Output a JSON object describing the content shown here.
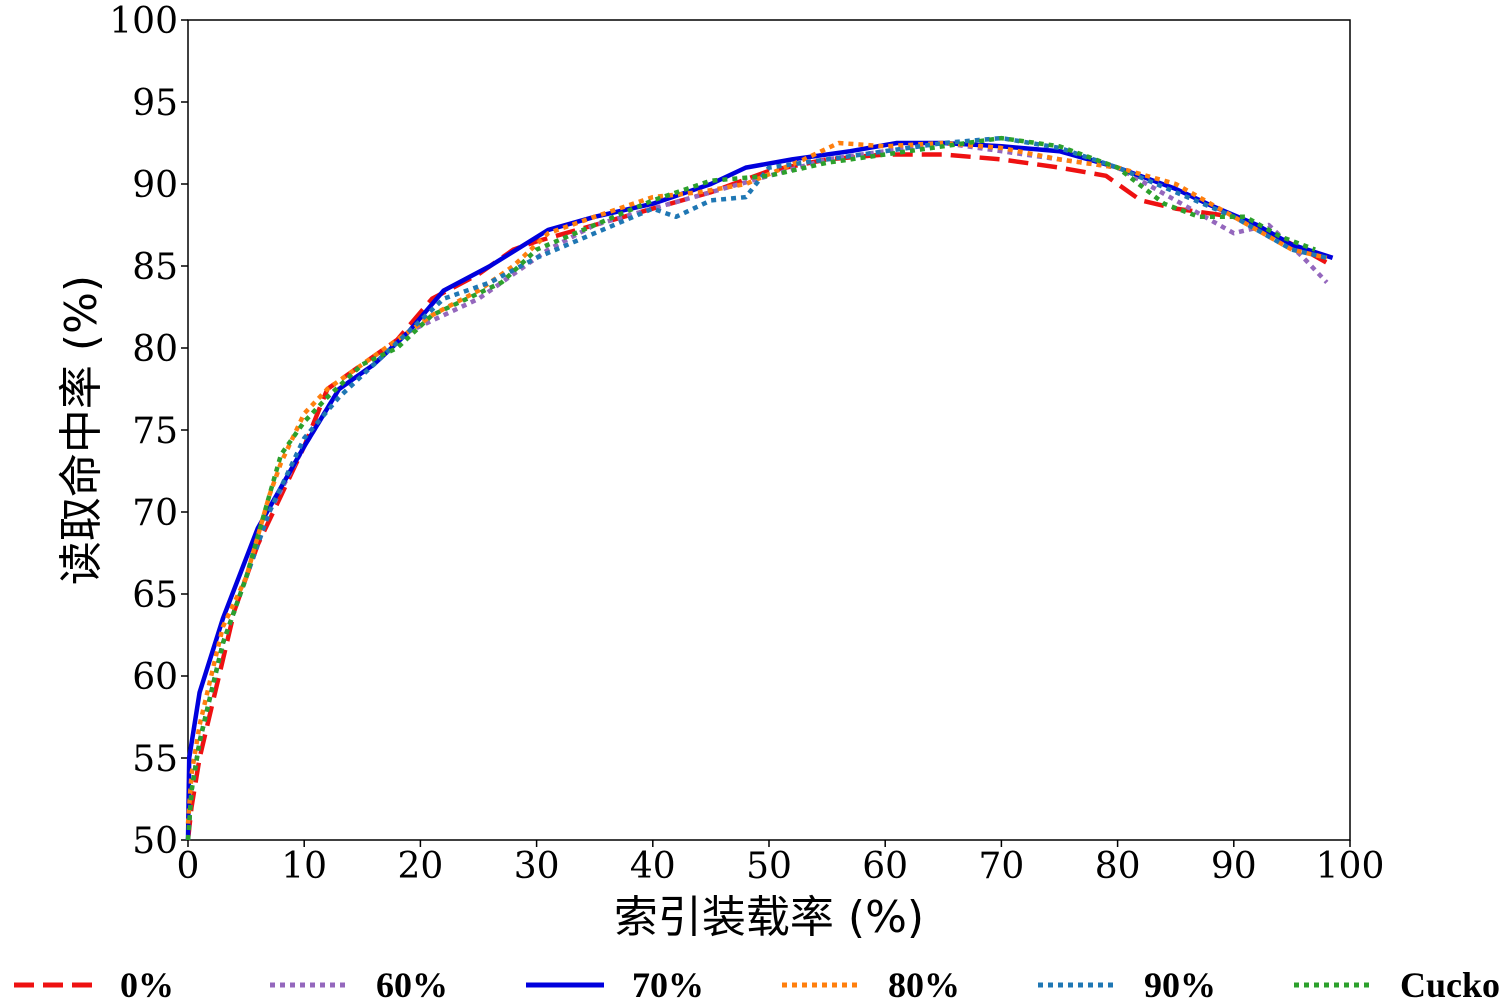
{
  "chart_data": {
    "type": "line",
    "title": "",
    "xlabel": "索引装载率 (%)",
    "ylabel": "读取命中率 (%)",
    "xlim": [
      0,
      100
    ],
    "ylim": [
      50,
      100
    ],
    "xticks": [
      0,
      10,
      20,
      30,
      40,
      50,
      60,
      70,
      80,
      90,
      100
    ],
    "yticks": [
      50,
      55,
      60,
      65,
      70,
      75,
      80,
      85,
      90,
      95,
      100
    ],
    "grid": false,
    "legend_position": "bottom",
    "series": [
      {
        "name": "0%",
        "color": "#ee1111",
        "dash": "dashed",
        "points": [
          [
            0,
            50
          ],
          [
            0.3,
            52
          ],
          [
            1,
            55
          ],
          [
            2,
            58
          ],
          [
            3,
            61
          ],
          [
            4,
            64
          ],
          [
            6,
            68
          ],
          [
            8,
            71
          ],
          [
            10,
            74
          ],
          [
            12,
            77.5
          ],
          [
            15,
            79
          ],
          [
            18,
            80.5
          ],
          [
            21,
            83
          ],
          [
            25,
            84.5
          ],
          [
            28,
            86
          ],
          [
            30,
            86.5
          ],
          [
            35,
            87.5
          ],
          [
            40,
            88.5
          ],
          [
            45,
            89.5
          ],
          [
            50,
            90.8
          ],
          [
            55,
            91.5
          ],
          [
            60,
            91.8
          ],
          [
            65,
            91.8
          ],
          [
            70,
            91.5
          ],
          [
            75,
            91
          ],
          [
            79,
            90.5
          ],
          [
            82,
            89
          ],
          [
            85,
            88.5
          ],
          [
            90,
            88
          ],
          [
            93,
            87
          ],
          [
            96,
            86
          ],
          [
            98.5,
            85
          ]
        ]
      },
      {
        "name": "60%",
        "color": "#9467bd",
        "dash": "dotted",
        "points": [
          [
            0,
            50
          ],
          [
            0.3,
            53
          ],
          [
            1,
            56
          ],
          [
            2,
            59
          ],
          [
            3,
            62
          ],
          [
            5,
            66
          ],
          [
            7,
            70
          ],
          [
            10,
            74
          ],
          [
            13,
            77.5
          ],
          [
            16,
            79
          ],
          [
            19,
            81
          ],
          [
            22,
            82
          ],
          [
            25,
            83
          ],
          [
            28,
            84.5
          ],
          [
            31,
            86
          ],
          [
            35,
            87.5
          ],
          [
            40,
            88.5
          ],
          [
            45,
            89.5
          ],
          [
            50,
            90.5
          ],
          [
            55,
            91.5
          ],
          [
            60,
            92
          ],
          [
            65,
            92.5
          ],
          [
            70,
            92
          ],
          [
            75,
            91.5
          ],
          [
            80,
            91
          ],
          [
            85,
            89
          ],
          [
            90,
            87
          ],
          [
            93,
            87.5
          ],
          [
            96,
            85.5
          ],
          [
            98,
            84
          ]
        ]
      },
      {
        "name": "70%",
        "color": "#0000dd",
        "dash": "solid",
        "points": [
          [
            0,
            50
          ],
          [
            0.1,
            55
          ],
          [
            1,
            59
          ],
          [
            3,
            63.5
          ],
          [
            6,
            69
          ],
          [
            8,
            71.5
          ],
          [
            10,
            74
          ],
          [
            13,
            77.5
          ],
          [
            16,
            79
          ],
          [
            19,
            81
          ],
          [
            22,
            83.5
          ],
          [
            26,
            85
          ],
          [
            31,
            87.2
          ],
          [
            35,
            88
          ],
          [
            40,
            88.8
          ],
          [
            45,
            90
          ],
          [
            48,
            91
          ],
          [
            52,
            91.5
          ],
          [
            57,
            92
          ],
          [
            61,
            92.5
          ],
          [
            65,
            92.5
          ],
          [
            70,
            92.3
          ],
          [
            75,
            92
          ],
          [
            80,
            91
          ],
          [
            85,
            89.7
          ],
          [
            88,
            88.7
          ],
          [
            92,
            87.5
          ],
          [
            95,
            86.3
          ],
          [
            98.5,
            85.5
          ]
        ]
      },
      {
        "name": "80%",
        "color": "#ff7f0e",
        "dash": "dotted",
        "points": [
          [
            0,
            51
          ],
          [
            0.3,
            54
          ],
          [
            1,
            57
          ],
          [
            2,
            60
          ],
          [
            3,
            63
          ],
          [
            5,
            66
          ],
          [
            7,
            71
          ],
          [
            8,
            73
          ],
          [
            10,
            76
          ],
          [
            12,
            77.5
          ],
          [
            15,
            79
          ],
          [
            18,
            80.5
          ],
          [
            21,
            82
          ],
          [
            25,
            83.5
          ],
          [
            28,
            85
          ],
          [
            31,
            87
          ],
          [
            35,
            88
          ],
          [
            40,
            89.2
          ],
          [
            44,
            89.5
          ],
          [
            48,
            90
          ],
          [
            53,
            91.5
          ],
          [
            56,
            92.5
          ],
          [
            60,
            92.3
          ],
          [
            65,
            92.5
          ],
          [
            70,
            92.2
          ],
          [
            75,
            91.5
          ],
          [
            80,
            91
          ],
          [
            85,
            90
          ],
          [
            90,
            88
          ],
          [
            95,
            86
          ],
          [
            98,
            85.5
          ]
        ]
      },
      {
        "name": "90%",
        "color": "#1f77b4",
        "dash": "dotted",
        "points": [
          [
            0,
            50
          ],
          [
            0.3,
            53
          ],
          [
            1,
            56
          ],
          [
            2,
            59
          ],
          [
            3,
            62
          ],
          [
            5,
            66
          ],
          [
            7,
            70
          ],
          [
            10,
            74.5
          ],
          [
            13,
            77
          ],
          [
            16,
            79
          ],
          [
            19,
            81
          ],
          [
            22,
            83
          ],
          [
            26,
            84
          ],
          [
            30,
            85.5
          ],
          [
            35,
            87
          ],
          [
            40,
            88.5
          ],
          [
            42,
            88
          ],
          [
            45,
            89
          ],
          [
            48,
            89.2
          ],
          [
            50,
            91
          ],
          [
            55,
            91.5
          ],
          [
            60,
            92
          ],
          [
            65,
            92.5
          ],
          [
            70,
            92.8
          ],
          [
            75,
            92.2
          ],
          [
            80,
            91
          ],
          [
            85,
            89.5
          ],
          [
            90,
            88
          ],
          [
            95,
            86
          ],
          [
            98,
            85.5
          ]
        ]
      },
      {
        "name": "Cuckoo",
        "color": "#2ca02c",
        "dash": "dotted",
        "points": [
          [
            0,
            50
          ],
          [
            0.3,
            53
          ],
          [
            1,
            56
          ],
          [
            2,
            59
          ],
          [
            3,
            62
          ],
          [
            5,
            66
          ],
          [
            7,
            71
          ],
          [
            8,
            73.5
          ],
          [
            10,
            75.5
          ],
          [
            12,
            77
          ],
          [
            15,
            79
          ],
          [
            18,
            80
          ],
          [
            21,
            82
          ],
          [
            24,
            83
          ],
          [
            27,
            84
          ],
          [
            30,
            86
          ],
          [
            35,
            87.5
          ],
          [
            40,
            89
          ],
          [
            45,
            90.2
          ],
          [
            50,
            90.5
          ],
          [
            55,
            91.3
          ],
          [
            60,
            91.8
          ],
          [
            65,
            92.3
          ],
          [
            70,
            92.8
          ],
          [
            75,
            92.3
          ],
          [
            80,
            91
          ],
          [
            84,
            88.8
          ],
          [
            87,
            88
          ],
          [
            91,
            88
          ],
          [
            94,
            86.8
          ],
          [
            97,
            86
          ]
        ]
      }
    ]
  }
}
